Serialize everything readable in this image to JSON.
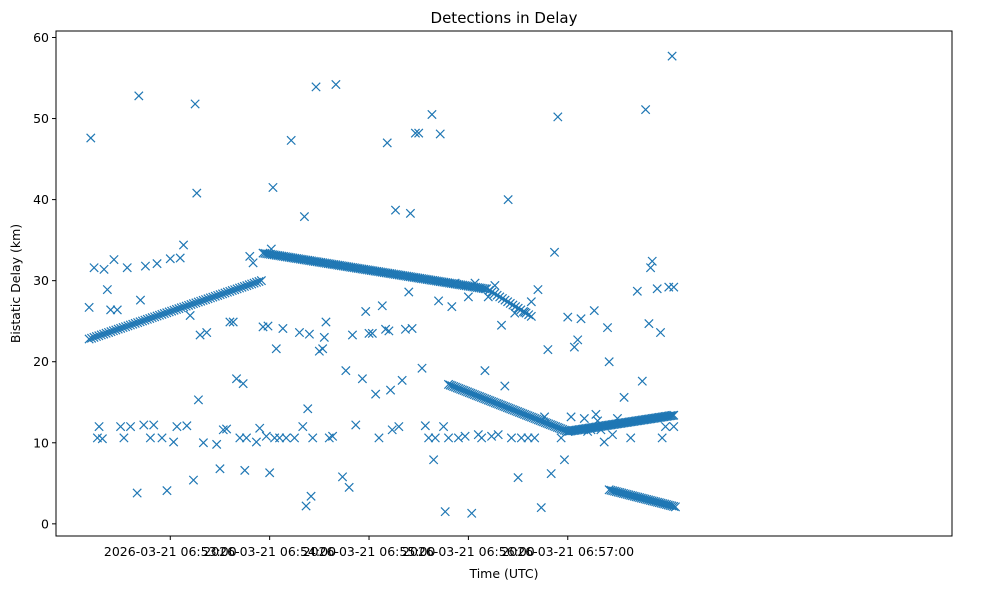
{
  "chart_data": {
    "type": "scatter",
    "title": "Detections in Delay",
    "xlabel": "Time (UTC)",
    "ylabel": "Bistatic Delay (km)",
    "x_unit": "seconds after 2026-03-21 06:52:00",
    "xlim": [
      -9,
      532
    ],
    "ylim": [
      -1.5,
      60.8
    ],
    "x_ticks": [
      {
        "value": 60,
        "label": "2026-03-21 06:53:00"
      },
      {
        "value": 120,
        "label": "2026-03-21 06:54:00"
      },
      {
        "value": 180,
        "label": "2026-03-21 06:55:00"
      },
      {
        "value": 240,
        "label": "2026-03-21 06:56:00"
      },
      {
        "value": 300,
        "label": "2026-03-21 06:57:00"
      }
    ],
    "y_ticks": [
      0,
      10,
      20,
      30,
      40,
      50,
      60
    ],
    "marker": "x",
    "color": "#1f77b4",
    "grid": false,
    "tracks": [
      {
        "name": "rising track",
        "t0": 11,
        "t1": 115,
        "y0": 22.8,
        "y1": 30.0,
        "n": 72
      },
      {
        "name": "upper track",
        "t0": 116,
        "t1": 250,
        "y0": 33.4,
        "y1": 29.0,
        "n": 120
      },
      {
        "name": "mid track",
        "t0": 251,
        "t1": 278,
        "y0": 29.0,
        "y1": 25.6,
        "n": 18
      },
      {
        "name": "descending track",
        "t0": 228,
        "t1": 300,
        "y0": 17.2,
        "y1": 11.4,
        "n": 70
      },
      {
        "name": "rising tail track",
        "t0": 300,
        "t1": 364,
        "y0": 11.4,
        "y1": 13.4,
        "n": 75
      },
      {
        "name": "low track",
        "t0": 325,
        "t1": 365,
        "y0": 4.2,
        "y1": 2.1,
        "n": 38
      }
    ],
    "points": [
      [
        11,
        26.7
      ],
      [
        12,
        47.6
      ],
      [
        14,
        31.6
      ],
      [
        16,
        10.6
      ],
      [
        17,
        12.0
      ],
      [
        19,
        10.5
      ],
      [
        20,
        31.4
      ],
      [
        22,
        28.9
      ],
      [
        24,
        26.4
      ],
      [
        26,
        32.6
      ],
      [
        28,
        26.4
      ],
      [
        30,
        12.0
      ],
      [
        32,
        10.6
      ],
      [
        34,
        31.6
      ],
      [
        36,
        12.0
      ],
      [
        40,
        3.8
      ],
      [
        41,
        52.8
      ],
      [
        42,
        27.6
      ],
      [
        44,
        12.2
      ],
      [
        45,
        31.8
      ],
      [
        48,
        10.6
      ],
      [
        50,
        12.2
      ],
      [
        52,
        32.1
      ],
      [
        55,
        10.6
      ],
      [
        58,
        4.1
      ],
      [
        60,
        32.7
      ],
      [
        62,
        10.1
      ],
      [
        64,
        12.0
      ],
      [
        66,
        32.8
      ],
      [
        68,
        34.4
      ],
      [
        70,
        12.1
      ],
      [
        72,
        25.7
      ],
      [
        74,
        5.4
      ],
      [
        75,
        51.8
      ],
      [
        76,
        40.8
      ],
      [
        77,
        15.3
      ],
      [
        78,
        23.3
      ],
      [
        80,
        10.0
      ],
      [
        82,
        23.6
      ],
      [
        88,
        9.8
      ],
      [
        90,
        6.8
      ],
      [
        92,
        11.6
      ],
      [
        94,
        11.7
      ],
      [
        96,
        24.9
      ],
      [
        98,
        24.9
      ],
      [
        100,
        17.9
      ],
      [
        102,
        10.6
      ],
      [
        104,
        17.3
      ],
      [
        105,
        6.6
      ],
      [
        106,
        10.6
      ],
      [
        108,
        33.0
      ],
      [
        110,
        32.2
      ],
      [
        112,
        10.1
      ],
      [
        114,
        11.8
      ],
      [
        116,
        24.3
      ],
      [
        118,
        10.8
      ],
      [
        119,
        24.4
      ],
      [
        120,
        6.3
      ],
      [
        121,
        33.9
      ],
      [
        122,
        41.5
      ],
      [
        123,
        10.6
      ],
      [
        124,
        21.6
      ],
      [
        126,
        10.6
      ],
      [
        128,
        24.1
      ],
      [
        130,
        10.6
      ],
      [
        133,
        47.3
      ],
      [
        135,
        10.6
      ],
      [
        138,
        23.6
      ],
      [
        140,
        12.0
      ],
      [
        141,
        37.9
      ],
      [
        142,
        2.2
      ],
      [
        143,
        14.2
      ],
      [
        144,
        23.4
      ],
      [
        145,
        3.4
      ],
      [
        146,
        10.6
      ],
      [
        148,
        53.9
      ],
      [
        150,
        21.3
      ],
      [
        152,
        21.6
      ],
      [
        153,
        23.0
      ],
      [
        154,
        24.9
      ],
      [
        156,
        10.6
      ],
      [
        158,
        10.8
      ],
      [
        160,
        54.2
      ],
      [
        164,
        5.8
      ],
      [
        166,
        18.9
      ],
      [
        168,
        4.5
      ],
      [
        170,
        23.3
      ],
      [
        172,
        12.2
      ],
      [
        176,
        17.9
      ],
      [
        178,
        26.2
      ],
      [
        180,
        23.5
      ],
      [
        182,
        23.5
      ],
      [
        184,
        16.0
      ],
      [
        186,
        10.6
      ],
      [
        188,
        26.9
      ],
      [
        190,
        24.0
      ],
      [
        191,
        47.0
      ],
      [
        192,
        23.8
      ],
      [
        193,
        16.5
      ],
      [
        194,
        11.6
      ],
      [
        196,
        38.7
      ],
      [
        198,
        12.0
      ],
      [
        200,
        17.7
      ],
      [
        202,
        24.0
      ],
      [
        204,
        28.6
      ],
      [
        205,
        38.3
      ],
      [
        206,
        24.1
      ],
      [
        208,
        48.2
      ],
      [
        210,
        48.2
      ],
      [
        212,
        19.2
      ],
      [
        214,
        12.1
      ],
      [
        216,
        10.6
      ],
      [
        218,
        50.5
      ],
      [
        219,
        7.9
      ],
      [
        220,
        10.6
      ],
      [
        222,
        27.5
      ],
      [
        223,
        48.1
      ],
      [
        225,
        12.0
      ],
      [
        226,
        1.5
      ],
      [
        228,
        10.6
      ],
      [
        230,
        26.8
      ],
      [
        232,
        29.7
      ],
      [
        234,
        10.6
      ],
      [
        238,
        10.8
      ],
      [
        240,
        28.0
      ],
      [
        242,
        1.3
      ],
      [
        244,
        29.7
      ],
      [
        246,
        11.0
      ],
      [
        248,
        10.6
      ],
      [
        250,
        18.9
      ],
      [
        252,
        28.0
      ],
      [
        254,
        10.8
      ],
      [
        256,
        29.4
      ],
      [
        258,
        11.0
      ],
      [
        260,
        24.5
      ],
      [
        262,
        17.0
      ],
      [
        264,
        40.0
      ],
      [
        266,
        10.6
      ],
      [
        268,
        26.0
      ],
      [
        270,
        5.7
      ],
      [
        272,
        10.6
      ],
      [
        274,
        26.1
      ],
      [
        276,
        10.6
      ],
      [
        278,
        27.4
      ],
      [
        280,
        10.6
      ],
      [
        282,
        28.9
      ],
      [
        284,
        2.0
      ],
      [
        286,
        13.2
      ],
      [
        288,
        21.5
      ],
      [
        290,
        6.2
      ],
      [
        292,
        33.5
      ],
      [
        294,
        50.2
      ],
      [
        296,
        10.6
      ],
      [
        298,
        7.9
      ],
      [
        300,
        25.5
      ],
      [
        302,
        13.2
      ],
      [
        304,
        21.8
      ],
      [
        306,
        22.7
      ],
      [
        308,
        25.3
      ],
      [
        310,
        13.0
      ],
      [
        312,
        11.4
      ],
      [
        314,
        11.6
      ],
      [
        316,
        26.3
      ],
      [
        317,
        13.5
      ],
      [
        318,
        12.7
      ],
      [
        320,
        11.6
      ],
      [
        322,
        10.1
      ],
      [
        324,
        24.2
      ],
      [
        325,
        20.0
      ],
      [
        327,
        11.0
      ],
      [
        330,
        13.0
      ],
      [
        334,
        15.6
      ],
      [
        338,
        10.6
      ],
      [
        342,
        28.7
      ],
      [
        345,
        17.6
      ],
      [
        347,
        51.1
      ],
      [
        349,
        24.7
      ],
      [
        350,
        31.6
      ],
      [
        351,
        32.4
      ],
      [
        354,
        29.0
      ],
      [
        356,
        23.6
      ],
      [
        357,
        10.6
      ],
      [
        359,
        12.0
      ],
      [
        361,
        29.2
      ],
      [
        363,
        57.7
      ],
      [
        364,
        12.0
      ],
      [
        364,
        29.2
      ]
    ]
  }
}
